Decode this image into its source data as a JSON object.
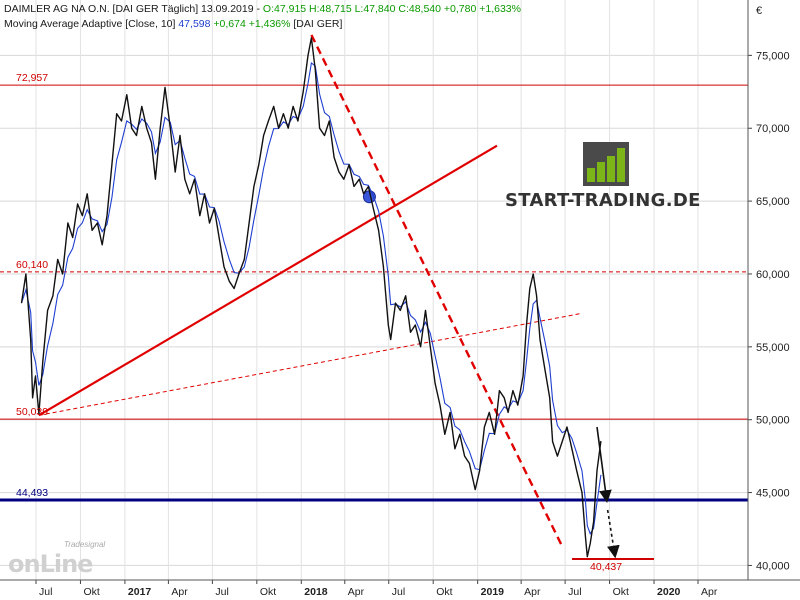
{
  "header": {
    "title_part": "DAIMLER AG NA O.N. [DAI GER  Täglich] 13.09.2019 -",
    "ohlc": "O:47,915 H:48,715 L:47,840 C:48,540 +0,780 +1,633%",
    "indicator_part": "Moving Average Adaptive [Close, 10]",
    "indicator_value": "47,598",
    "indicator_change": "+0,674 +1,436%",
    "indicator_suffix": "[DAI GER]"
  },
  "logo": {
    "text": "START-TRADING.DE"
  },
  "watermark": {
    "small": "Tradesignal",
    "big": "onLine"
  },
  "chart_data": {
    "type": "line",
    "title": "DAIMLER AG NA O.N.",
    "currency_symbol": "€",
    "y_ticks": [
      "75,000",
      "70,000",
      "65,000",
      "60,000",
      "55,000",
      "50,000",
      "45,000",
      "40,000"
    ],
    "x_ticks": [
      "Jul",
      "Okt",
      "2017",
      "Apr",
      "Jul",
      "Okt",
      "2018",
      "Apr",
      "Jul",
      "Okt",
      "2019",
      "Apr",
      "Jul",
      "Okt",
      "2020",
      "Apr"
    ],
    "ylim": [
      39.0,
      78.8
    ],
    "grid": true,
    "levels": [
      {
        "label": "72,957",
        "value": 72.957,
        "color": "#d00000",
        "style": "solid"
      },
      {
        "label": "60,140",
        "value": 60.14,
        "color": "#d00000",
        "style": "dashed"
      },
      {
        "label": "50,039",
        "value": 50.039,
        "color": "#d00000",
        "style": "solid"
      },
      {
        "label": "44,493",
        "value": 44.493,
        "color": "#000080",
        "style": "solid-thick"
      },
      {
        "label": "40,437",
        "value": 40.437,
        "color": "#d00000",
        "style": "short"
      }
    ],
    "series": [
      {
        "type": "price",
        "values": [
          [
            "2016-06-01",
            58.0
          ],
          [
            "2016-06-10",
            60.0
          ],
          [
            "2016-06-20",
            55.5
          ],
          [
            "2016-06-24",
            51.5
          ],
          [
            "2016-06-30",
            53.0
          ],
          [
            "2016-07-07",
            50.4
          ],
          [
            "2016-07-15",
            54.0
          ],
          [
            "2016-07-25",
            57.5
          ],
          [
            "2016-08-05",
            58.5
          ],
          [
            "2016-08-15",
            61.0
          ],
          [
            "2016-08-25",
            60.0
          ],
          [
            "2016-09-05",
            63.5
          ],
          [
            "2016-09-15",
            62.5
          ],
          [
            "2016-09-25",
            64.8
          ],
          [
            "2016-10-05",
            64.0
          ],
          [
            "2016-10-15",
            65.5
          ],
          [
            "2016-10-25",
            63.0
          ],
          [
            "2016-11-05",
            63.5
          ],
          [
            "2016-11-15",
            62.0
          ],
          [
            "2016-11-25",
            64.0
          ],
          [
            "2016-12-05",
            67.5
          ],
          [
            "2016-12-15",
            71.0
          ],
          [
            "2016-12-25",
            70.5
          ],
          [
            "2017-01-05",
            72.3
          ],
          [
            "2017-01-15",
            70.0
          ],
          [
            "2017-01-25",
            69.5
          ],
          [
            "2017-02-05",
            71.5
          ],
          [
            "2017-02-15",
            70.0
          ],
          [
            "2017-02-25",
            69.0
          ],
          [
            "2017-03-05",
            66.5
          ],
          [
            "2017-03-15",
            70.0
          ],
          [
            "2017-03-25",
            72.8
          ],
          [
            "2017-04-05",
            70.0
          ],
          [
            "2017-04-15",
            67.0
          ],
          [
            "2017-04-25",
            69.5
          ],
          [
            "2017-05-05",
            66.5
          ],
          [
            "2017-05-15",
            65.5
          ],
          [
            "2017-05-25",
            66.5
          ],
          [
            "2017-06-05",
            64.0
          ],
          [
            "2017-06-15",
            65.5
          ],
          [
            "2017-06-25",
            63.5
          ],
          [
            "2017-07-05",
            64.5
          ],
          [
            "2017-07-15",
            62.5
          ],
          [
            "2017-07-25",
            60.5
          ],
          [
            "2017-08-05",
            59.5
          ],
          [
            "2017-08-15",
            59.0
          ],
          [
            "2017-08-25",
            60.0
          ],
          [
            "2017-09-05",
            61.0
          ],
          [
            "2017-09-15",
            63.5
          ],
          [
            "2017-09-25",
            66.0
          ],
          [
            "2017-10-05",
            67.5
          ],
          [
            "2017-10-15",
            69.5
          ],
          [
            "2017-10-25",
            70.5
          ],
          [
            "2017-11-05",
            71.5
          ],
          [
            "2017-11-15",
            70.0
          ],
          [
            "2017-11-25",
            71.0
          ],
          [
            "2017-12-05",
            70.0
          ],
          [
            "2017-12-15",
            71.5
          ],
          [
            "2017-12-25",
            70.5
          ],
          [
            "2018-01-05",
            72.5
          ],
          [
            "2018-01-15",
            75.0
          ],
          [
            "2018-01-22",
            76.2
          ],
          [
            "2018-01-30",
            74.0
          ],
          [
            "2018-02-08",
            70.0
          ],
          [
            "2018-02-18",
            69.5
          ],
          [
            "2018-02-28",
            70.5
          ],
          [
            "2018-03-10",
            68.0
          ],
          [
            "2018-03-20",
            67.0
          ],
          [
            "2018-03-30",
            66.5
          ],
          [
            "2018-04-10",
            67.5
          ],
          [
            "2018-04-20",
            66.0
          ],
          [
            "2018-05-01",
            66.5
          ],
          [
            "2018-05-10",
            65.5
          ],
          [
            "2018-05-20",
            66.0
          ],
          [
            "2018-05-30",
            64.5
          ],
          [
            "2018-06-10",
            63.0
          ],
          [
            "2018-06-20",
            60.5
          ],
          [
            "2018-06-30",
            56.5
          ],
          [
            "2018-07-05",
            55.5
          ],
          [
            "2018-07-15",
            58.0
          ],
          [
            "2018-07-25",
            57.5
          ],
          [
            "2018-08-05",
            58.5
          ],
          [
            "2018-08-15",
            56.0
          ],
          [
            "2018-08-25",
            56.5
          ],
          [
            "2018-09-05",
            55.0
          ],
          [
            "2018-09-15",
            57.5
          ],
          [
            "2018-09-25",
            55.0
          ],
          [
            "2018-10-05",
            52.5
          ],
          [
            "2018-10-15",
            51.0
          ],
          [
            "2018-10-25",
            49.0
          ],
          [
            "2018-11-05",
            50.5
          ],
          [
            "2018-11-15",
            48.0
          ],
          [
            "2018-11-25",
            49.0
          ],
          [
            "2018-12-05",
            47.5
          ],
          [
            "2018-12-15",
            47.0
          ],
          [
            "2018-12-27",
            45.2
          ],
          [
            "2019-01-05",
            46.5
          ],
          [
            "2019-01-15",
            49.5
          ],
          [
            "2019-01-25",
            50.5
          ],
          [
            "2019-02-05",
            49.0
          ],
          [
            "2019-02-15",
            52.0
          ],
          [
            "2019-02-25",
            51.5
          ],
          [
            "2019-03-05",
            50.5
          ],
          [
            "2019-03-15",
            52.0
          ],
          [
            "2019-03-25",
            51.0
          ],
          [
            "2019-04-05",
            53.0
          ],
          [
            "2019-04-12",
            56.5
          ],
          [
            "2019-04-19",
            59.0
          ],
          [
            "2019-04-26",
            60.0
          ],
          [
            "2019-05-03",
            58.5
          ],
          [
            "2019-05-10",
            55.5
          ],
          [
            "2019-05-20",
            53.5
          ],
          [
            "2019-05-30",
            51.5
          ],
          [
            "2019-06-05",
            48.5
          ],
          [
            "2019-06-15",
            47.5
          ],
          [
            "2019-06-25",
            48.5
          ],
          [
            "2019-07-05",
            49.5
          ],
          [
            "2019-07-15",
            48.0
          ],
          [
            "2019-07-25",
            46.5
          ],
          [
            "2019-08-05",
            45.0
          ],
          [
            "2019-08-12",
            42.0
          ],
          [
            "2019-08-16",
            40.6
          ],
          [
            "2019-08-22",
            41.5
          ],
          [
            "2019-08-29",
            43.0
          ],
          [
            "2019-09-05",
            46.5
          ],
          [
            "2019-09-13",
            48.54
          ]
        ]
      }
    ]
  }
}
